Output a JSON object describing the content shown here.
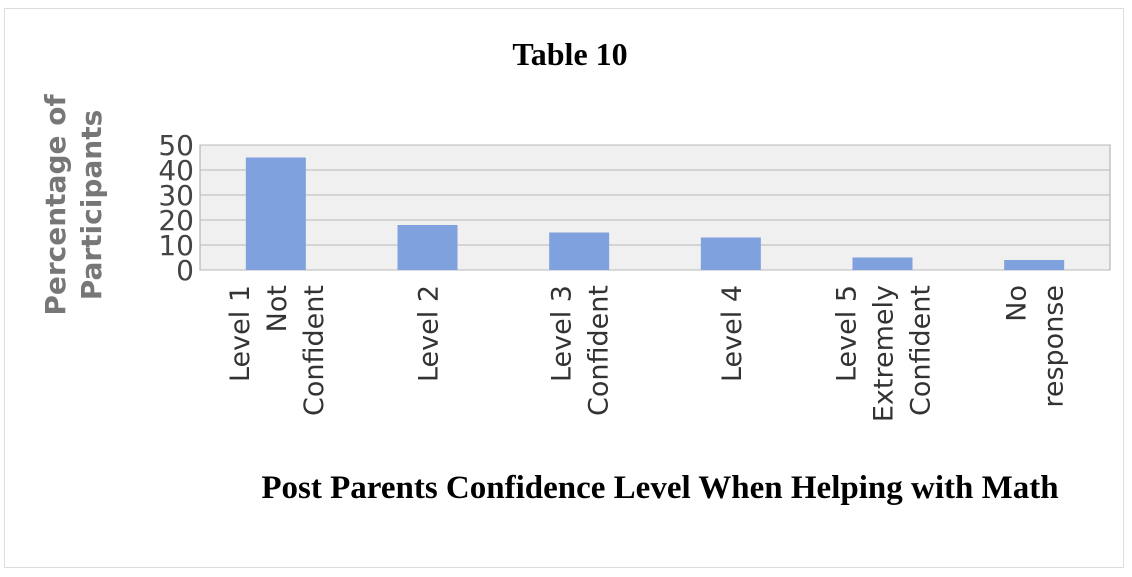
{
  "chart_data": {
    "type": "bar",
    "title": "Table 10",
    "xlabel": "Post Parents Confidence Level When Helping with Math",
    "ylabel": "Percentage of Participants",
    "categories": [
      [
        "Level 1",
        "Not",
        "Confident"
      ],
      [
        "Level 2"
      ],
      [
        "Level 3",
        "Confident"
      ],
      [
        "Level 4"
      ],
      [
        "Level 5",
        "Extremely",
        "Confident"
      ],
      [
        "No",
        "response"
      ]
    ],
    "values": [
      45,
      18,
      15,
      13,
      5,
      4
    ],
    "color": "#7fa1dd",
    "ylim": [
      0,
      50
    ],
    "yticks": [
      0,
      10,
      20,
      30,
      40,
      50
    ],
    "grid": true
  }
}
